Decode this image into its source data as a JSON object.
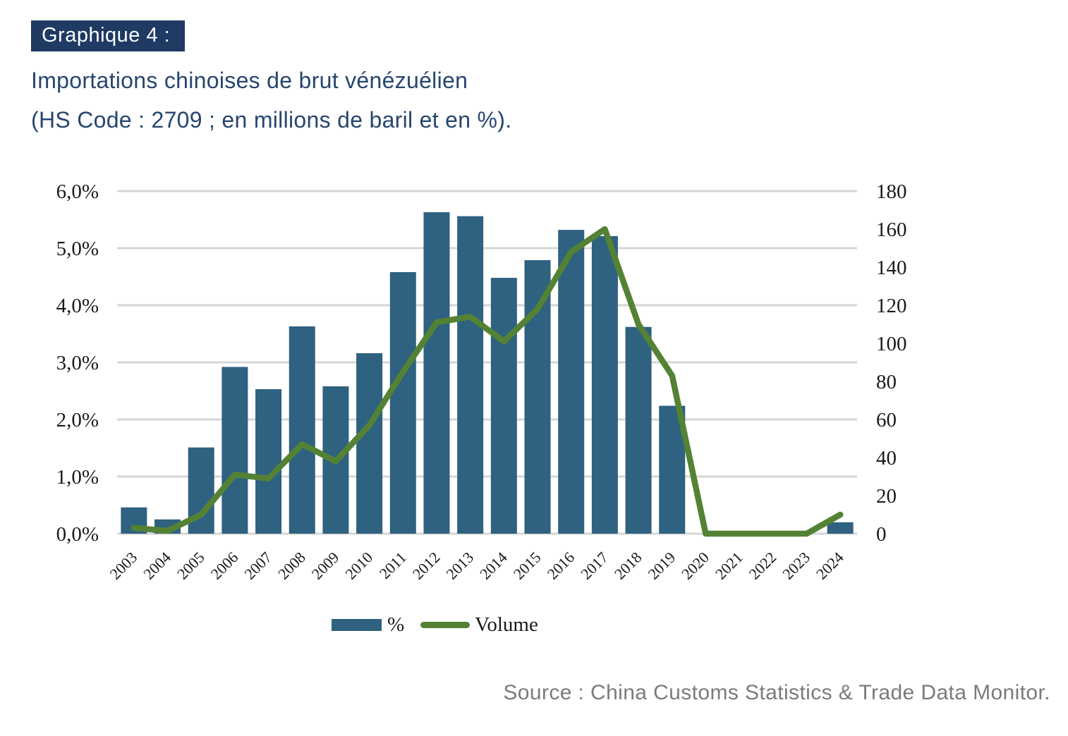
{
  "header": {
    "badge": "Graphique 4 :",
    "title_line1": "Importations chinoises de brut vénézuélien",
    "title_line2": "(HS Code : 2709 ; en millions de baril et en %)."
  },
  "legend": {
    "bar_label": "%",
    "line_label": "Volume"
  },
  "source_note": "Source : China Customs Statistics & Trade Data Monitor.",
  "colors": {
    "bar": "#2f6180",
    "line": "#548235",
    "gridline": "#d6d6d6",
    "axis_text": "#1a1a1a",
    "badge_bg": "#1f3a63",
    "title_text": "#27466f",
    "source_text": "#7b7b7b"
  },
  "axes": {
    "left_ticks": [
      "6,0%",
      "5,0%",
      "4,0%",
      "3,0%",
      "2,0%",
      "1,0%",
      "0,0%"
    ],
    "right_ticks": [
      "180",
      "160",
      "140",
      "120",
      "100",
      "80",
      "60",
      "40",
      "20",
      "0"
    ]
  },
  "chart_data": {
    "type": "bar",
    "subtype": "combo-bar-line",
    "title": "Importations chinoises de brut vénézuélien (HS Code : 2709 ; en millions de baril et en %).",
    "categories": [
      "2003",
      "2004",
      "2005",
      "2006",
      "2007",
      "2008",
      "2009",
      "2010",
      "2011",
      "2012",
      "2013",
      "2014",
      "2015",
      "2016",
      "2017",
      "2018",
      "2019",
      "2020",
      "2021",
      "2022",
      "2023",
      "2024"
    ],
    "series": [
      {
        "name": "%",
        "type": "bar",
        "axis": "left",
        "color": "#2f6180",
        "values": [
          0.46,
          0.25,
          1.51,
          2.92,
          2.53,
          3.63,
          2.58,
          3.16,
          4.58,
          5.63,
          5.56,
          4.48,
          4.79,
          5.32,
          5.21,
          3.62,
          2.24,
          0,
          0,
          0,
          0,
          0.2
        ]
      },
      {
        "name": "Volume",
        "type": "line",
        "axis": "right",
        "color": "#548235",
        "values": [
          3,
          1.5,
          10,
          31,
          29,
          47,
          38,
          57,
          85,
          111,
          114,
          101,
          118,
          148,
          160,
          110,
          83,
          0,
          0,
          0,
          0,
          10
        ]
      }
    ],
    "left_axis": {
      "min": 0,
      "max": 6,
      "tick_step": 1,
      "unit": "%"
    },
    "right_axis": {
      "min": 0,
      "max": 180,
      "tick_step": 20,
      "unit": "millions de barils"
    },
    "grid": true,
    "legend_position": "bottom"
  }
}
